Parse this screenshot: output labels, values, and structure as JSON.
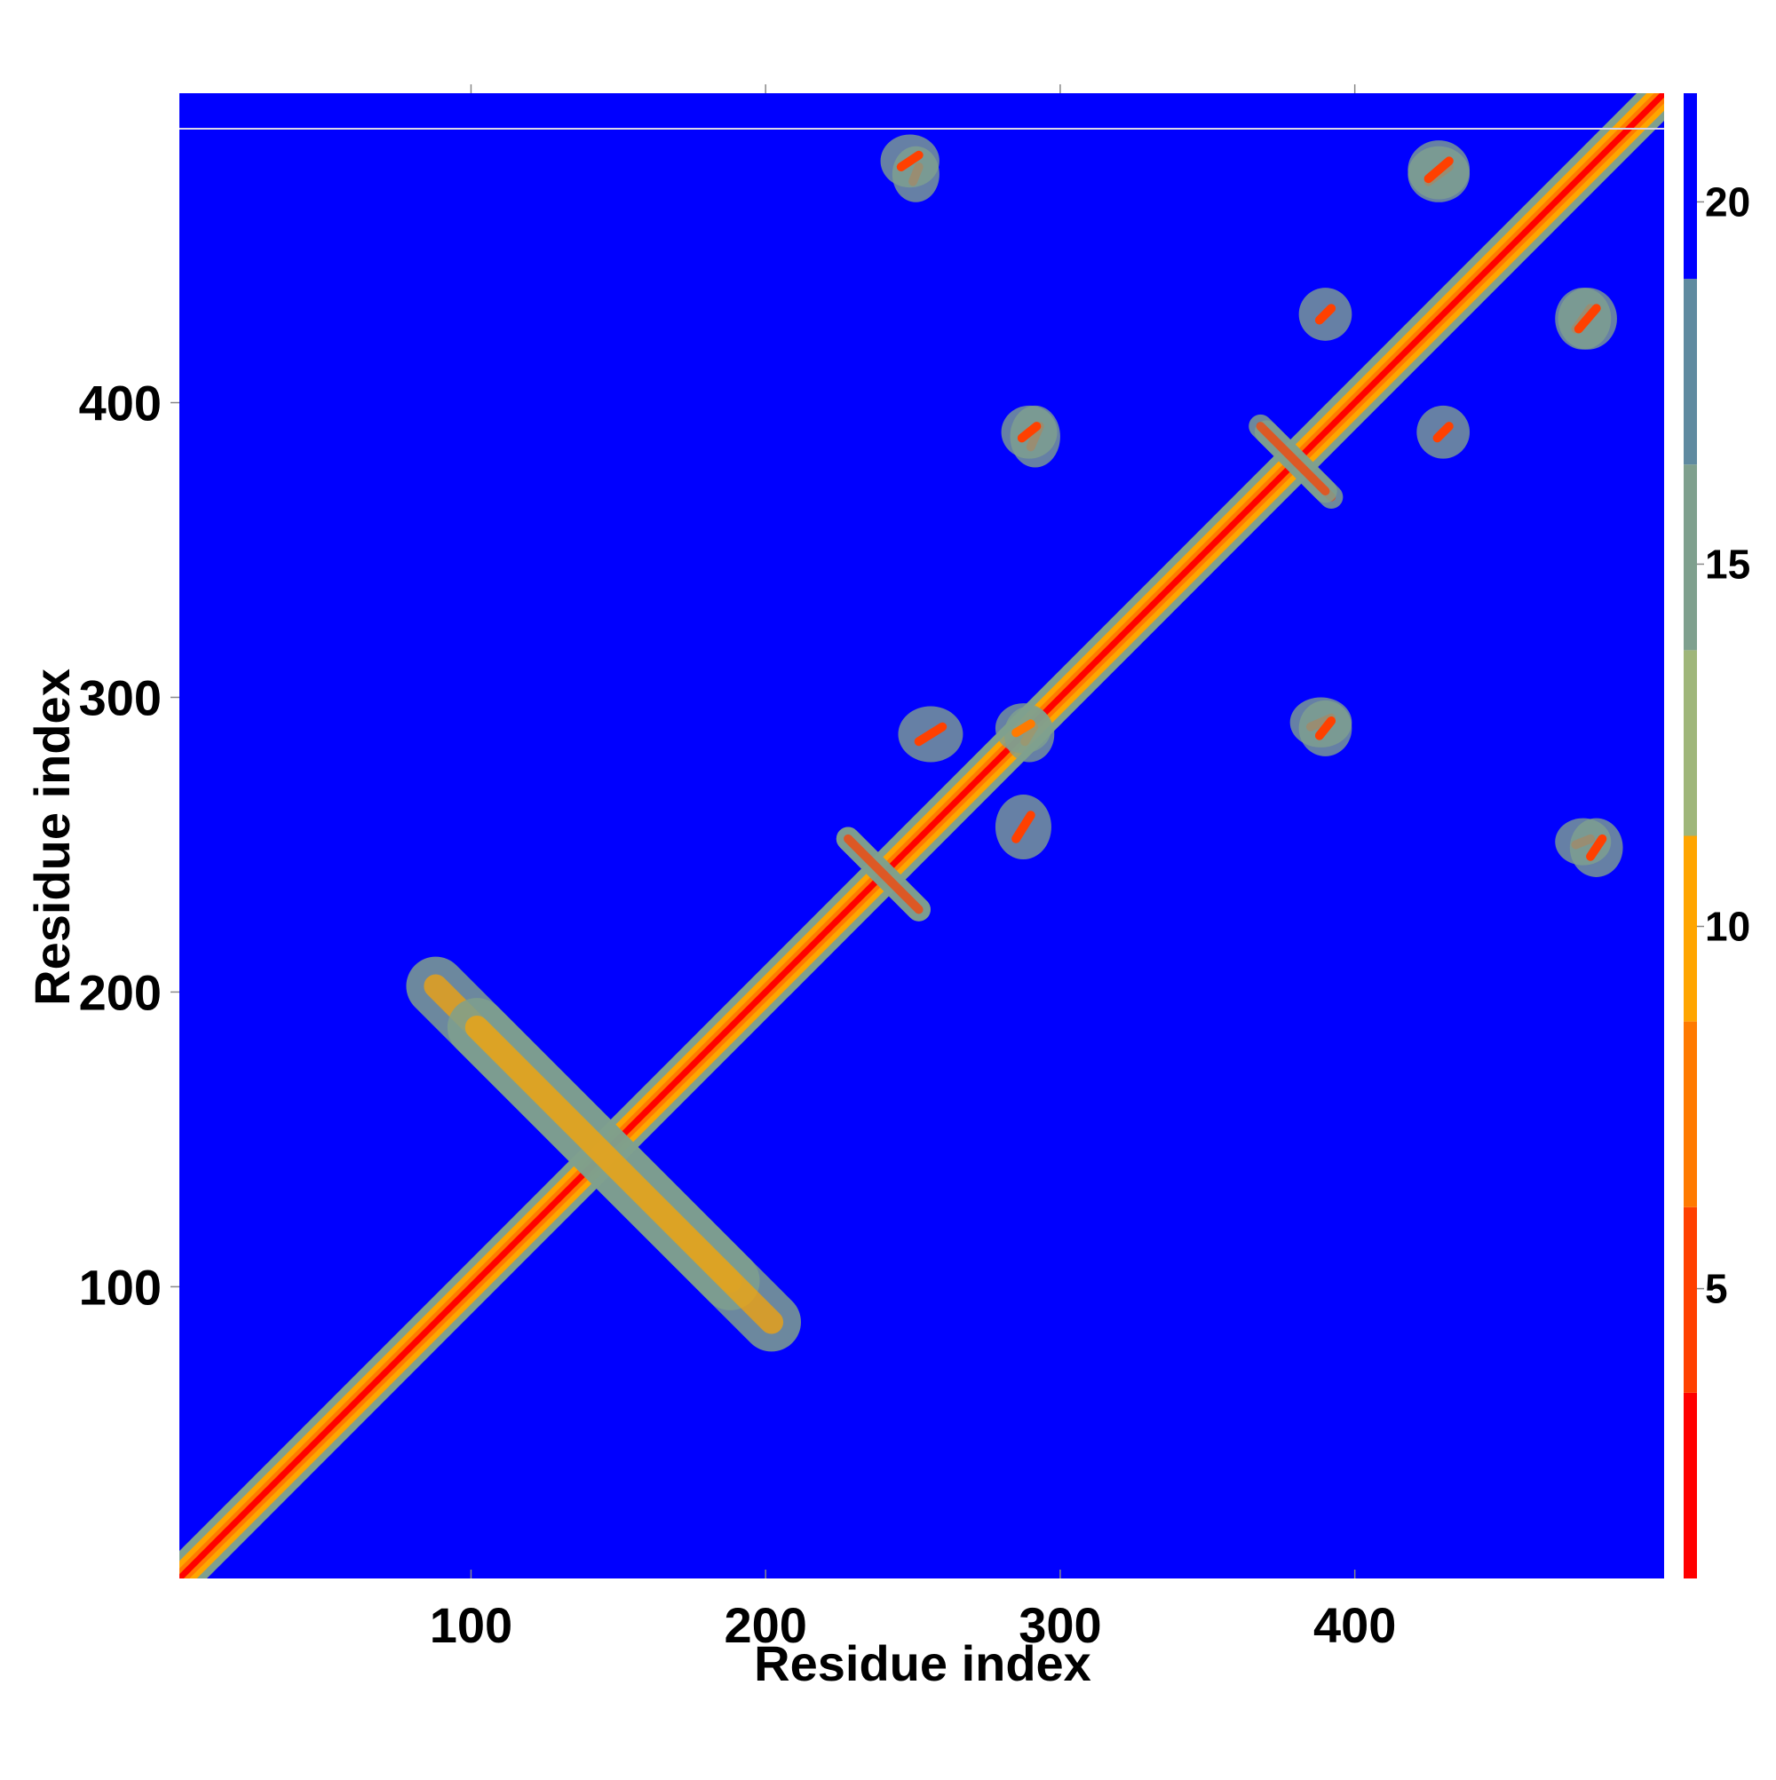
{
  "chart_data": {
    "type": "heatmap",
    "description_of_values": "pairwise residue distance map; diagonal band of low values, off-diagonal contact features",
    "xlabel": "Residue index",
    "ylabel": "Residue index",
    "xlim": [
      1,
      505
    ],
    "ylim": [
      1,
      505
    ],
    "xticks": [
      100,
      200,
      300,
      400
    ],
    "yticks": [
      100,
      200,
      300,
      400
    ],
    "colorbar": {
      "ticks": [
        5,
        10,
        15,
        20
      ],
      "range": [
        1,
        21.5
      ],
      "colors": [
        "#ff0000",
        "#ff4000",
        "#ff7a00",
        "#ffa500",
        "#9fb67a",
        "#7fa08e",
        "#5f8aa0",
        "#0000ff"
      ]
    },
    "background_value": 21,
    "diagonal": {
      "from": 1,
      "to": 505,
      "core_value": 2,
      "band_width_residues": 6
    },
    "features": [
      {
        "kind": "antiparallel",
        "center": [
          145,
          145
        ],
        "span": [
          88,
          188
        ],
        "value": 11
      },
      {
        "kind": "antiparallel",
        "center": [
          240,
          240
        ],
        "span": [
          228,
          252
        ],
        "value": 6
      },
      {
        "kind": "antiparallel",
        "center": [
          380,
          380
        ],
        "span": [
          370,
          392
        ],
        "value": 6
      },
      {
        "kind": "patch",
        "x": [
          250,
          252
        ],
        "y": [
          475,
          480
        ],
        "value": 6
      },
      {
        "kind": "patch",
        "x": [
          288,
          291
        ],
        "y": [
          285,
          290
        ],
        "value": 8
      },
      {
        "kind": "patch",
        "x": [
          290,
          293
        ],
        "y": [
          385,
          392
        ],
        "value": 6
      },
      {
        "kind": "patch",
        "x": [
          388,
          392
        ],
        "y": [
          287,
          292
        ],
        "value": 6
      },
      {
        "kind": "patch",
        "x": [
          480,
          484
        ],
        "y": [
          246,
          252
        ],
        "value": 6
      },
      {
        "kind": "patch",
        "x": [
          425,
          432
        ],
        "y": [
          475,
          480
        ],
        "value": 6
      },
      {
        "kind": "patch",
        "x": [
          428,
          432
        ],
        "y": [
          388,
          392
        ],
        "value": 6
      },
      {
        "kind": "patch",
        "x": [
          476,
          482
        ],
        "y": [
          425,
          432
        ],
        "value": 6
      },
      {
        "kind": "patch",
        "x": [
          252,
          260
        ],
        "y": [
          285,
          290
        ],
        "value": 6
      }
    ]
  }
}
